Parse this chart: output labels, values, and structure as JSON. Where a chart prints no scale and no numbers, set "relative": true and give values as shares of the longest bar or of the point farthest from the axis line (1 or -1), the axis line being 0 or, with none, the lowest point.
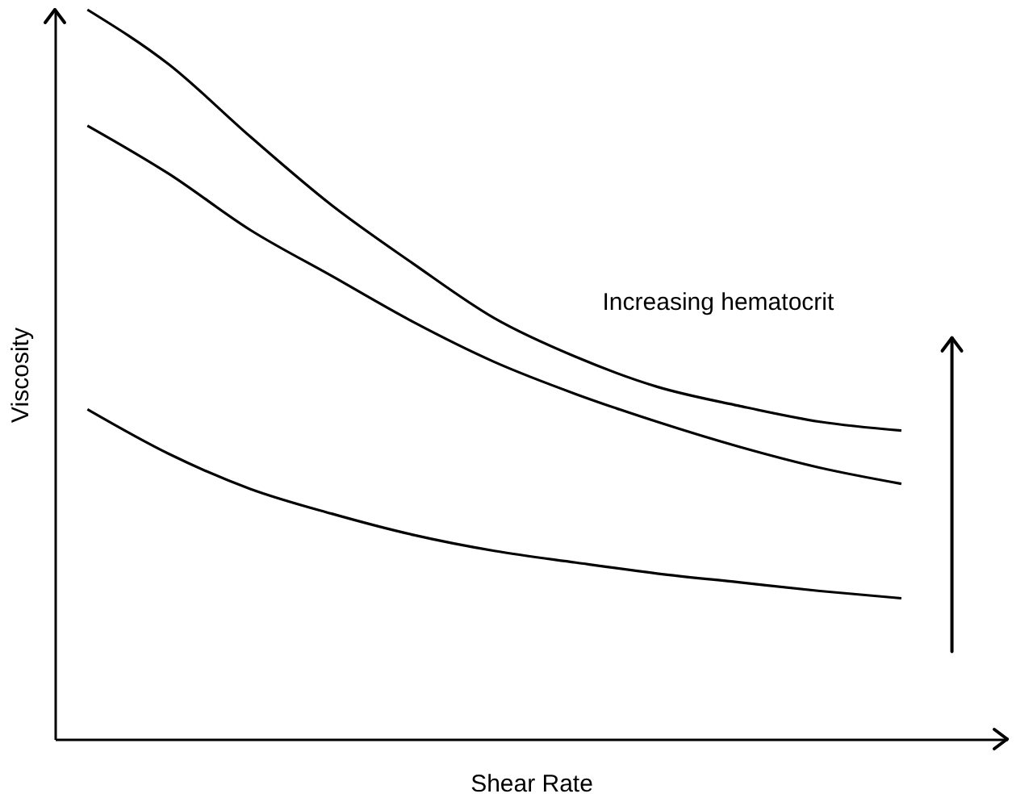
{
  "chart_data": {
    "type": "line",
    "relative": true,
    "xlabel": "Shear Rate",
    "ylabel": "Viscosity",
    "tick_labels": false,
    "legend": false,
    "grid": false,
    "categories": [
      null,
      null,
      null,
      null,
      null,
      null,
      null,
      null,
      null,
      null,
      null
    ],
    "series": [
      {
        "color": "#000000",
        "values": [
          1.0,
          0.925,
          0.826,
          0.732,
          0.652,
          0.577,
          0.524,
          0.483,
          0.457,
          0.435,
          0.423
        ]
      },
      {
        "color": "#000000",
        "values": [
          0.841,
          0.775,
          0.698,
          0.635,
          0.572,
          0.517,
          0.473,
          0.435,
          0.401,
          0.372,
          0.35
        ]
      },
      {
        "color": "#000000",
        "values": [
          0.452,
          0.391,
          0.343,
          0.309,
          0.28,
          0.258,
          0.242,
          0.227,
          0.215,
          0.203,
          0.193
        ]
      }
    ],
    "annotations": [
      "Increasing hematocrit"
    ]
  }
}
